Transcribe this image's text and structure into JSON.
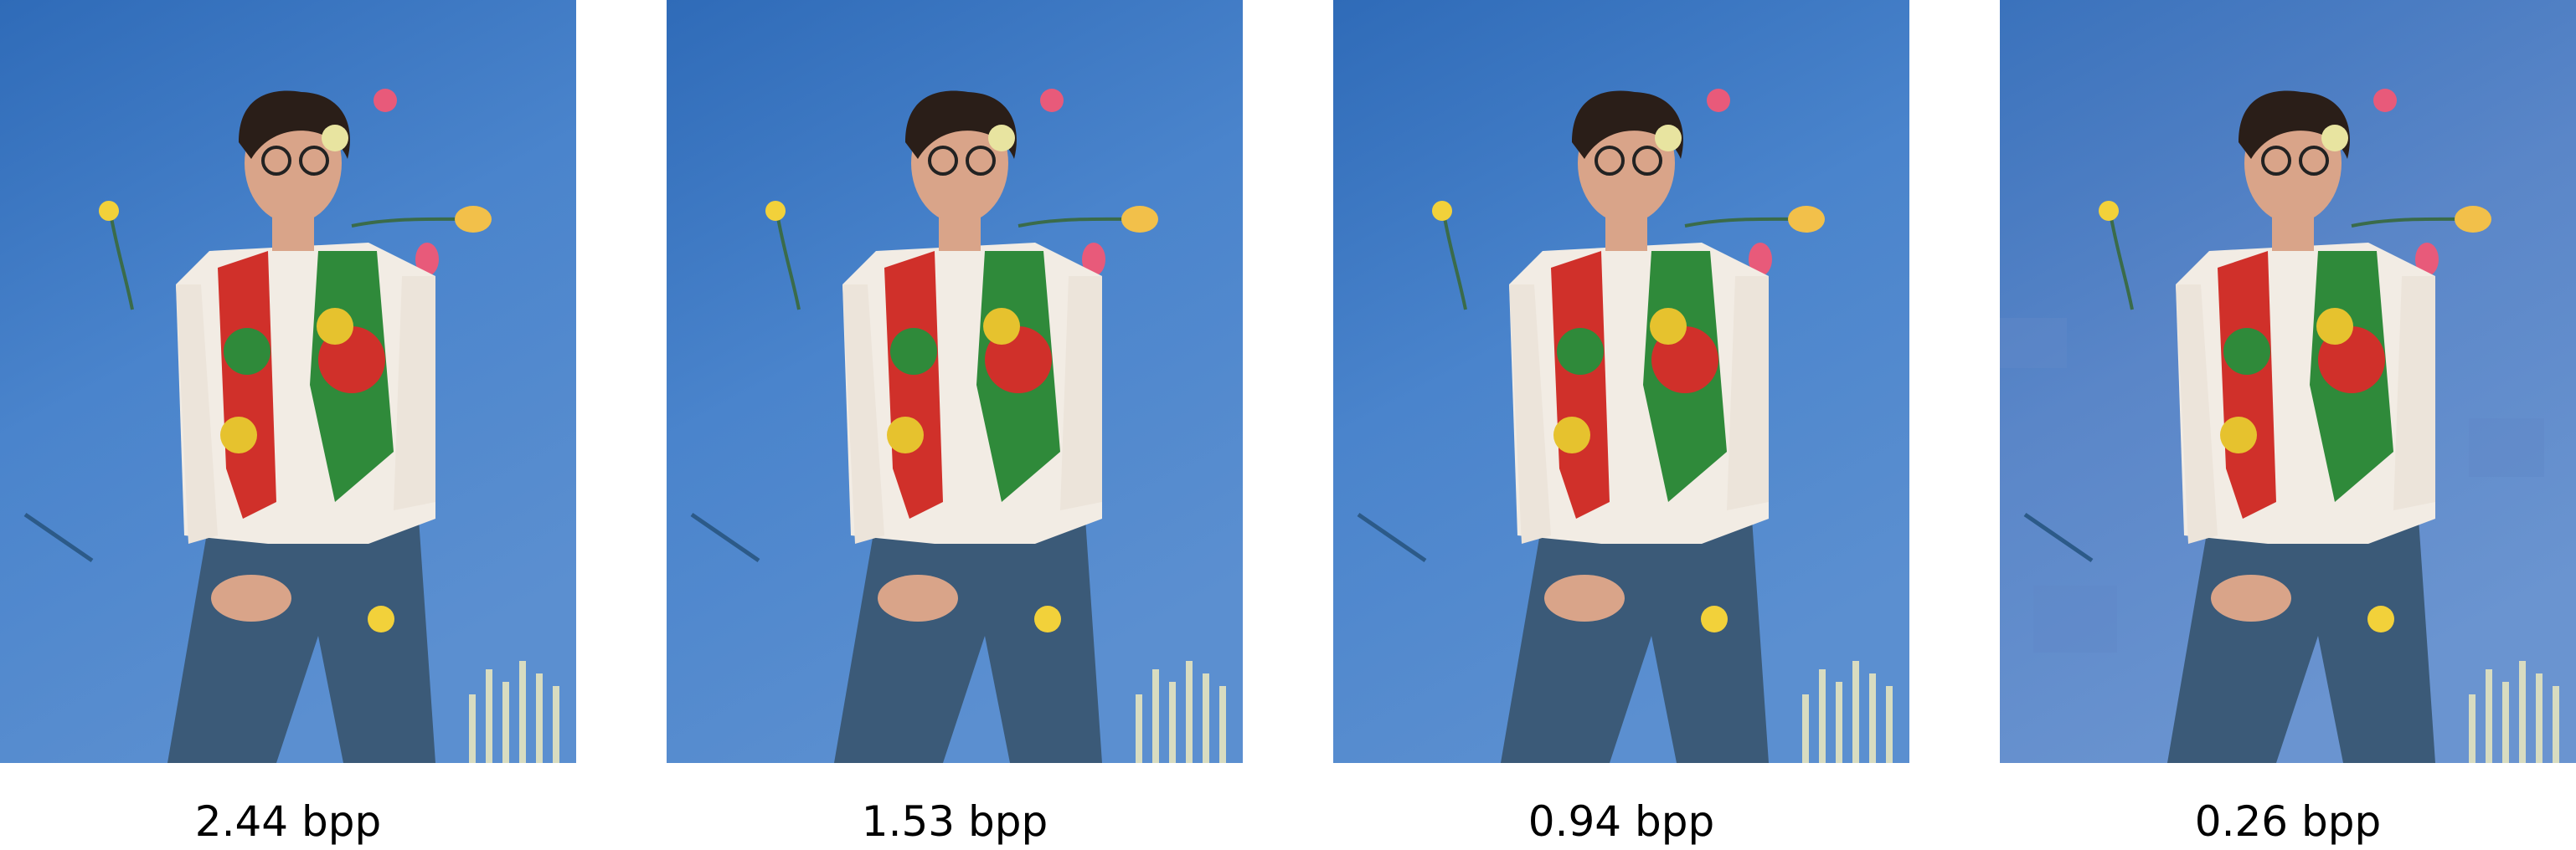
{
  "panels": [
    {
      "caption": "2.44 bpp",
      "background_color": "#3f78c2",
      "quality_level": 2.44
    },
    {
      "caption": "1.53 bpp",
      "background_color": "#3f78c2",
      "quality_level": 1.53
    },
    {
      "caption": "0.94 bpp",
      "background_color": "#3f78c2",
      "quality_level": 0.94
    },
    {
      "caption": "0.26 bpp",
      "background_color": "#4a7dc0",
      "quality_level": 0.26
    }
  ],
  "colors": {
    "page_background": "#ffffff",
    "caption_text": "#000000",
    "backdrop_top": "#2f6bb8",
    "backdrop_bottom": "#5b8fd0",
    "shirt": "#f2ece4",
    "jeans": "#3b5a78",
    "hair": "#2a1e18",
    "skin": "#d9a489",
    "vest_red": "#d0302a",
    "vest_green": "#2f8a3a",
    "vest_yellow": "#e6c22e",
    "flower_pink": "#e85a7a",
    "flower_yellow": "#f2d13a",
    "grass": "#d8dcc0"
  },
  "icons": [
    "portrait-photo"
  ]
}
